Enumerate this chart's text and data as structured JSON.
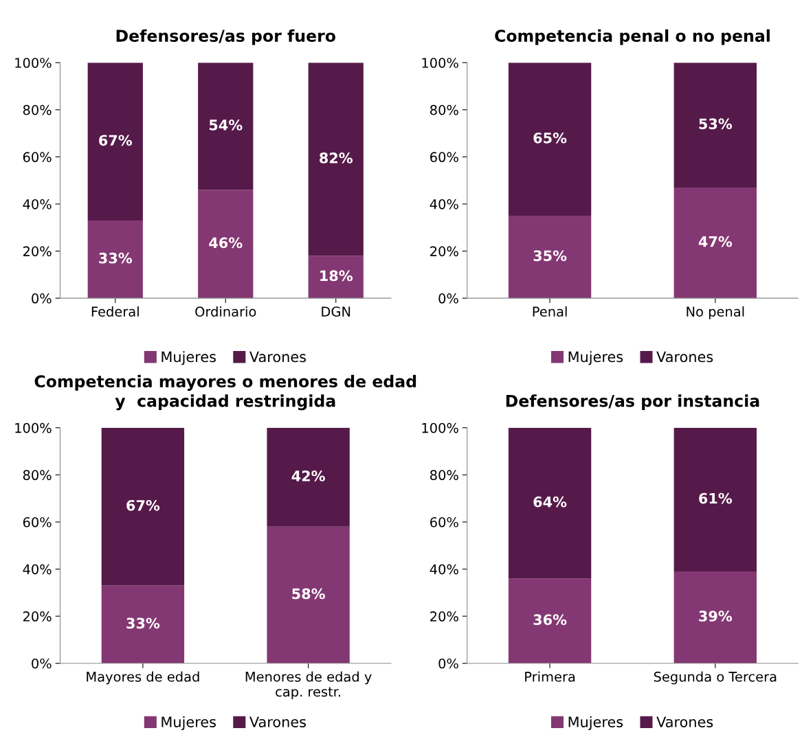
{
  "chart_data": [
    {
      "type": "bar",
      "stacked": true,
      "title": "Defensores/as por fuero",
      "categories": [
        "Federal",
        "Ordinario",
        "DGN"
      ],
      "ylim": [
        0,
        100
      ],
      "yticks": [
        {
          "value": 0,
          "label": "0%"
        },
        {
          "value": 20,
          "label": "20%"
        },
        {
          "value": 40,
          "label": "40%"
        },
        {
          "value": 60,
          "label": "60%"
        },
        {
          "value": 80,
          "label": "80%"
        },
        {
          "value": 100,
          "label": "100%"
        }
      ],
      "legend": "bottom",
      "grid": false,
      "series": [
        {
          "name": "Mujeres",
          "color": "#843873",
          "values": [
            33,
            46,
            18
          ],
          "value_labels": [
            "33%",
            "46%",
            "18%"
          ]
        },
        {
          "name": "Varones",
          "color": "#561a4a",
          "values": [
            67,
            54,
            82
          ],
          "value_labels": [
            "67%",
            "54%",
            "82%"
          ]
        }
      ]
    },
    {
      "type": "bar",
      "stacked": true,
      "title": "Competencia penal o no penal",
      "categories": [
        "Penal",
        "No penal"
      ],
      "ylim": [
        0,
        100
      ],
      "yticks": [
        {
          "value": 0,
          "label": "0%"
        },
        {
          "value": 20,
          "label": "20%"
        },
        {
          "value": 40,
          "label": "40%"
        },
        {
          "value": 60,
          "label": "60%"
        },
        {
          "value": 80,
          "label": "80%"
        },
        {
          "value": 100,
          "label": "100%"
        }
      ],
      "legend": "bottom",
      "grid": false,
      "series": [
        {
          "name": "Mujeres",
          "color": "#843873",
          "values": [
            35,
            47
          ],
          "value_labels": [
            "35%",
            "47%"
          ]
        },
        {
          "name": "Varones",
          "color": "#561a4a",
          "values": [
            65,
            53
          ],
          "value_labels": [
            "65%",
            "53%"
          ]
        }
      ]
    },
    {
      "type": "bar",
      "stacked": true,
      "title": "Competencia mayores o menores de edad\ny  capacidad restringida",
      "categories": [
        "Mayores de edad",
        "Menores de edad y\ncap. restr."
      ],
      "ylim": [
        0,
        100
      ],
      "yticks": [
        {
          "value": 0,
          "label": "0%"
        },
        {
          "value": 20,
          "label": "20%"
        },
        {
          "value": 40,
          "label": "40%"
        },
        {
          "value": 60,
          "label": "60%"
        },
        {
          "value": 80,
          "label": "80%"
        },
        {
          "value": 100,
          "label": "100%"
        }
      ],
      "legend": "bottom",
      "grid": false,
      "series": [
        {
          "name": "Mujeres",
          "color": "#843873",
          "values": [
            33,
            58
          ],
          "value_labels": [
            "33%",
            "58%"
          ]
        },
        {
          "name": "Varones",
          "color": "#561a4a",
          "values": [
            67,
            42
          ],
          "value_labels": [
            "67%",
            "42%"
          ]
        }
      ]
    },
    {
      "type": "bar",
      "stacked": true,
      "title": "Defensores/as por instancia",
      "categories": [
        "Primera",
        "Segunda o Tercera"
      ],
      "ylim": [
        0,
        100
      ],
      "yticks": [
        {
          "value": 0,
          "label": "0%"
        },
        {
          "value": 20,
          "label": "20%"
        },
        {
          "value": 40,
          "label": "40%"
        },
        {
          "value": 60,
          "label": "60%"
        },
        {
          "value": 80,
          "label": "80%"
        },
        {
          "value": 100,
          "label": "100%"
        }
      ],
      "legend": "bottom",
      "grid": false,
      "series": [
        {
          "name": "Mujeres",
          "color": "#843873",
          "values": [
            36,
            39
          ],
          "value_labels": [
            "36%",
            "39%"
          ]
        },
        {
          "name": "Varones",
          "color": "#561a4a",
          "values": [
            64,
            61
          ],
          "value_labels": [
            "64%",
            "61%"
          ]
        }
      ]
    }
  ]
}
